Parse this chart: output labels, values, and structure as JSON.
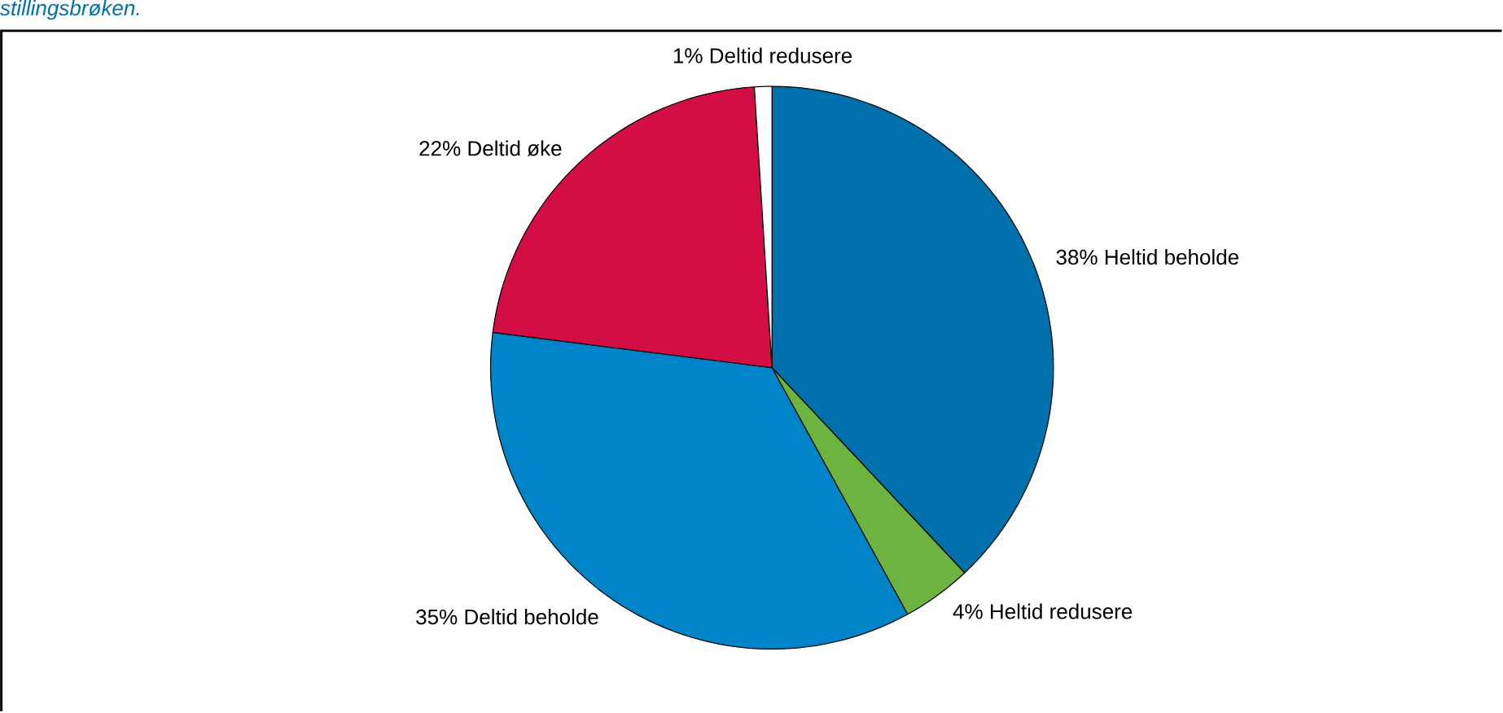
{
  "chart_data": {
    "type": "pie",
    "title": "stillingsbrøken.",
    "categories": [
      "Heltid beholde",
      "Heltid redusere",
      "Deltid beholde",
      "Deltid øke",
      "Deltid redusere"
    ],
    "values": [
      38,
      4,
      35,
      22,
      1
    ],
    "value_labels": [
      "38%",
      "4%",
      "35%",
      "22%",
      "1%"
    ],
    "colors": [
      "#0070ad",
      "#6db33f",
      "#0084c8",
      "#d20e45",
      "#ffffff"
    ]
  }
}
